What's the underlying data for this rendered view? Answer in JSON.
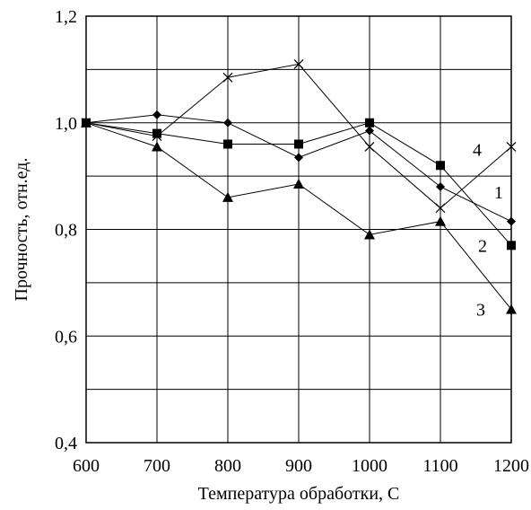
{
  "chart_data": {
    "type": "line",
    "xlabel": "Температура обработки, С",
    "ylabel": "Прочность, отн.ед.",
    "xlim": [
      600,
      1200
    ],
    "ylim": [
      0.4,
      1.2
    ],
    "x_ticks": [
      "600",
      "700",
      "800",
      "900",
      "1000",
      "1100",
      "1200"
    ],
    "y_ticks": [
      "0,4",
      "0,6",
      "0,8",
      "1,0",
      "1,2"
    ],
    "grid": true,
    "series": [
      {
        "name": "1",
        "marker": "diamond",
        "x": [
          600,
          700,
          800,
          900,
          1000,
          1100,
          1200
        ],
        "y": [
          1.0,
          1.015,
          1.0,
          0.935,
          0.985,
          0.88,
          0.815
        ]
      },
      {
        "name": "2",
        "marker": "square",
        "x": [
          600,
          700,
          800,
          900,
          1000,
          1100,
          1200
        ],
        "y": [
          1.0,
          0.98,
          0.96,
          0.96,
          1.0,
          0.92,
          0.77
        ]
      },
      {
        "name": "3",
        "marker": "triangle",
        "x": [
          600,
          700,
          800,
          900,
          1000,
          1100,
          1200
        ],
        "y": [
          1.0,
          0.955,
          0.86,
          0.885,
          0.79,
          0.815,
          0.65
        ]
      },
      {
        "name": "4",
        "marker": "cross",
        "x": [
          600,
          700,
          800,
          900,
          1000,
          1100,
          1200
        ],
        "y": [
          1.0,
          0.975,
          1.085,
          1.11,
          0.955,
          0.84,
          0.955
        ]
      }
    ]
  }
}
